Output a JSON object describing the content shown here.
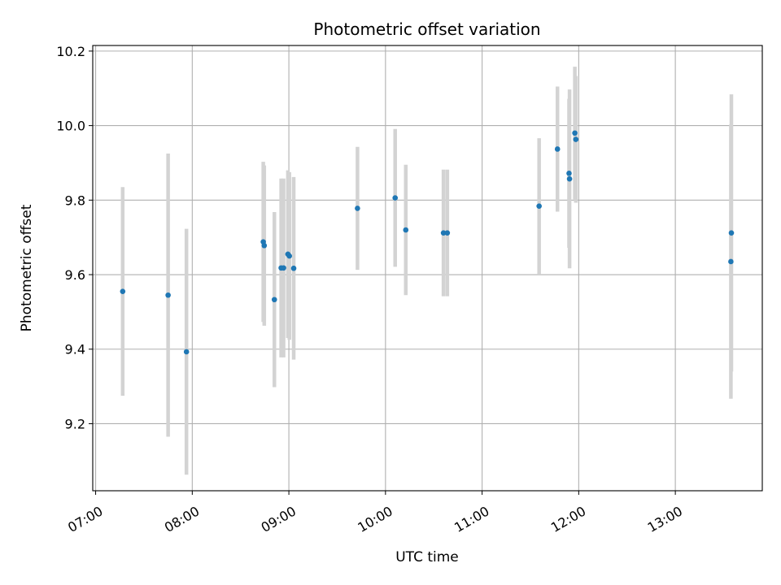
{
  "chart_data": {
    "type": "scatter",
    "title": "Photometric offset variation",
    "xlabel": "UTC time",
    "ylabel": "Photometric offset",
    "x_unit": "hours (UTC)",
    "xlim": [
      6.97,
      13.9
    ],
    "ylim": [
      9.02,
      10.215
    ],
    "x_ticks": [
      {
        "value": 7,
        "label": "07:00"
      },
      {
        "value": 8,
        "label": "08:00"
      },
      {
        "value": 9,
        "label": "09:00"
      },
      {
        "value": 10,
        "label": "10:00"
      },
      {
        "value": 11,
        "label": "11:00"
      },
      {
        "value": 12,
        "label": "12:00"
      },
      {
        "value": 13,
        "label": "13:00"
      }
    ],
    "y_ticks": [
      {
        "value": 9.2,
        "label": "9.2"
      },
      {
        "value": 9.4,
        "label": "9.4"
      },
      {
        "value": 9.6,
        "label": "9.6"
      },
      {
        "value": 9.8,
        "label": "9.8"
      },
      {
        "value": 10.0,
        "label": "10.0"
      },
      {
        "value": 10.2,
        "label": "10.2"
      }
    ],
    "grid": true,
    "point_color": "#1f77b4",
    "errorbar_color": "#d3d3d3",
    "points": [
      {
        "time": "07:17",
        "x": 7.28,
        "y": 9.555,
        "err": 0.28
      },
      {
        "time": "07:45",
        "x": 7.75,
        "y": 9.545,
        "err": 0.38
      },
      {
        "time": "07:56",
        "x": 7.94,
        "y": 9.393,
        "err": 0.33
      },
      {
        "time": "08:44",
        "x": 8.735,
        "y": 9.688,
        "err": 0.215
      },
      {
        "time": "08:44",
        "x": 8.745,
        "y": 9.678,
        "err": 0.215
      },
      {
        "time": "08:51",
        "x": 8.85,
        "y": 9.533,
        "err": 0.235
      },
      {
        "time": "08:55",
        "x": 8.92,
        "y": 9.618,
        "err": 0.24
      },
      {
        "time": "08:57",
        "x": 8.945,
        "y": 9.618,
        "err": 0.24
      },
      {
        "time": "09:00",
        "x": 8.99,
        "y": 9.655,
        "err": 0.225
      },
      {
        "time": "09:00",
        "x": 9.005,
        "y": 9.65,
        "err": 0.225
      },
      {
        "time": "09:03",
        "x": 9.05,
        "y": 9.617,
        "err": 0.245
      },
      {
        "time": "09:43",
        "x": 9.71,
        "y": 9.778,
        "err": 0.165
      },
      {
        "time": "10:06",
        "x": 10.1,
        "y": 9.806,
        "err": 0.185
      },
      {
        "time": "10:13",
        "x": 10.21,
        "y": 9.72,
        "err": 0.175
      },
      {
        "time": "10:36",
        "x": 10.6,
        "y": 9.712,
        "err": 0.17
      },
      {
        "time": "10:38",
        "x": 10.64,
        "y": 9.712,
        "err": 0.17
      },
      {
        "time": "11:35",
        "x": 11.59,
        "y": 9.784,
        "err": 0.182
      },
      {
        "time": "11:47",
        "x": 11.78,
        "y": 9.937,
        "err": 0.168
      },
      {
        "time": "11:54",
        "x": 11.9,
        "y": 9.872,
        "err": 0.2
      },
      {
        "time": "11:54",
        "x": 11.905,
        "y": 9.857,
        "err": 0.24
      },
      {
        "time": "11:58",
        "x": 11.96,
        "y": 9.98,
        "err": 0.178
      },
      {
        "time": "11:58",
        "x": 11.97,
        "y": 9.963,
        "err": 0.17
      },
      {
        "time": "13:34",
        "x": 13.58,
        "y": 9.712,
        "err": 0.372
      },
      {
        "time": "13:34",
        "x": 13.575,
        "y": 9.635,
        "err": 0.368
      }
    ]
  }
}
